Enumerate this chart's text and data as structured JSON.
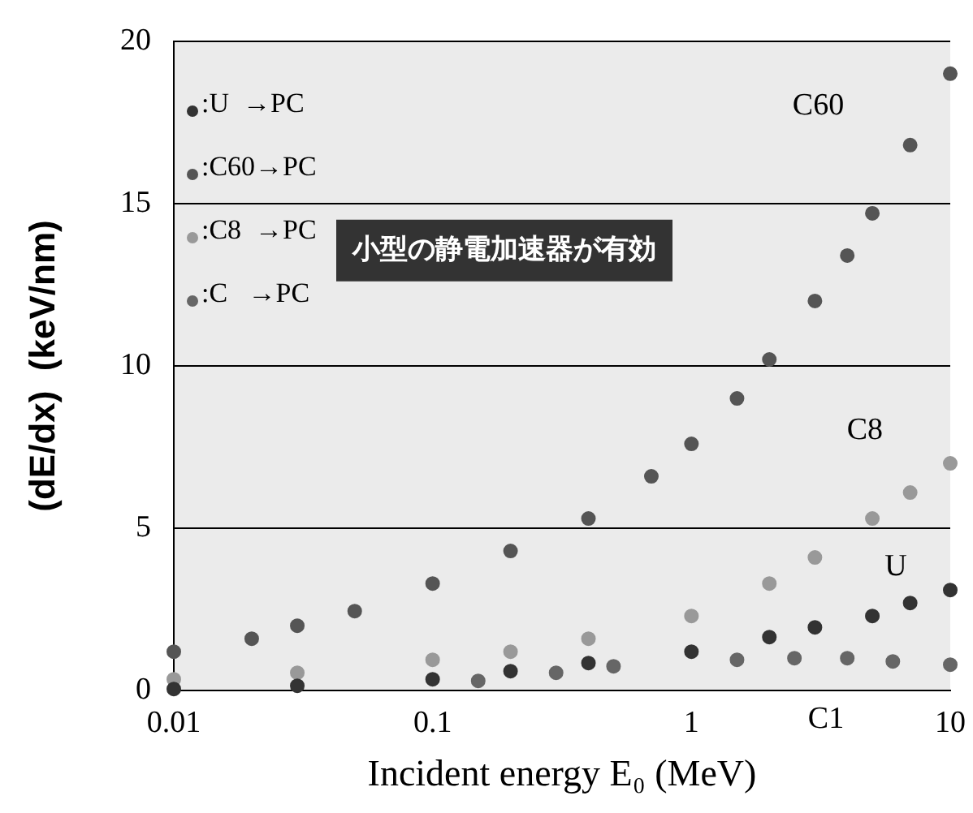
{
  "chart_data": {
    "type": "scatter",
    "xlabel": "Incident energy E₀ (MeV)",
    "ylabel": "(dE/dx)  (keV/nm)",
    "log": "x",
    "xlim": [
      0.01,
      10
    ],
    "xticks": [
      0.01,
      0.1,
      1,
      10
    ],
    "ylim": [
      0,
      20
    ],
    "yticks": [
      0,
      5,
      10,
      15,
      20
    ],
    "grid": "y",
    "legend": "top left",
    "marker": "circle",
    "series": [
      {
        "name": ":U  →PC",
        "color": "#333333",
        "x": [
          0.01,
          0.03,
          0.1,
          0.2,
          0.4,
          1,
          2,
          3,
          5,
          7,
          10
        ],
        "values": [
          0.05,
          0.15,
          0.35,
          0.6,
          0.85,
          1.2,
          1.65,
          1.95,
          2.3,
          2.7,
          3.1
        ]
      },
      {
        "name": ":C60→PC",
        "color": "#555555",
        "x": [
          0.01,
          0.02,
          0.03,
          0.05,
          0.1,
          0.2,
          0.4,
          0.7,
          1,
          1.5,
          2,
          3,
          4,
          5,
          7,
          10
        ],
        "values": [
          1.2,
          1.6,
          2.0,
          2.45,
          3.3,
          4.3,
          5.3,
          6.6,
          7.6,
          9.0,
          10.2,
          12.0,
          13.4,
          14.7,
          16.8,
          19.0
        ]
      },
      {
        "name": ":C8  →PC",
        "color": "#999999",
        "x": [
          0.01,
          0.03,
          0.1,
          0.2,
          0.4,
          1,
          2,
          3,
          5,
          7,
          10
        ],
        "values": [
          0.35,
          0.55,
          0.95,
          1.2,
          1.6,
          2.3,
          3.3,
          4.1,
          5.3,
          6.1,
          7.0
        ]
      },
      {
        "name": ":C   →PC",
        "color": "#666666",
        "x": [
          0.15,
          0.3,
          0.5,
          1.5,
          2.5,
          4,
          6,
          10
        ],
        "values": [
          0.3,
          0.55,
          0.75,
          0.95,
          1.0,
          1.0,
          0.9,
          0.8
        ]
      }
    ],
    "annotations": [
      "C60",
      "C8",
      "U",
      "C1",
      "小型の静電加速器が有効"
    ]
  }
}
